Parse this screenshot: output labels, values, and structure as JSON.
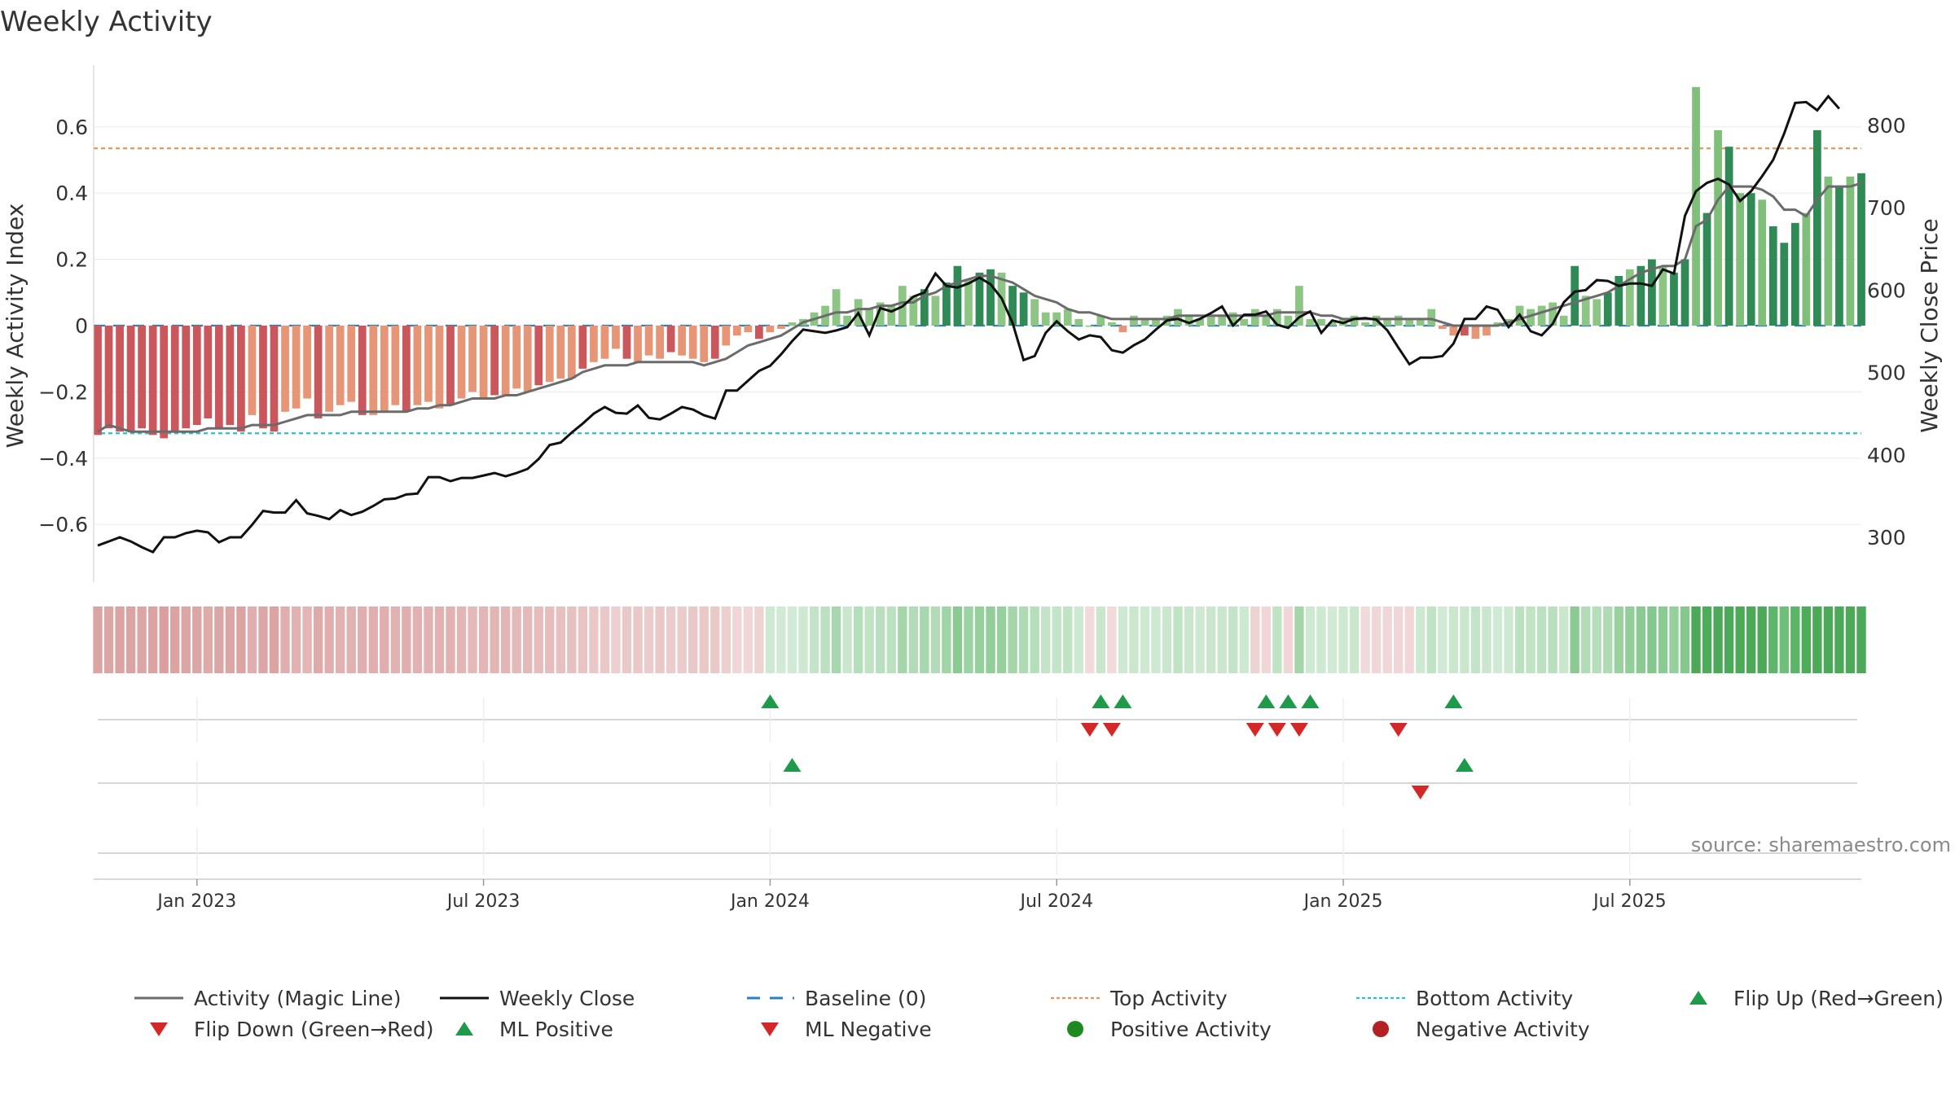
{
  "chart_data": {
    "type": "bar+line",
    "title": "Weekly Activity",
    "ylabel_left": "Weekly Activity Index",
    "ylabel_right": "Weekly Close Price",
    "source": "source: sharemaestro.com",
    "left_ticks": [
      {
        "v": 0.6,
        "label": "0.6"
      },
      {
        "v": 0.4,
        "label": "0.4"
      },
      {
        "v": 0.2,
        "label": "0.2"
      },
      {
        "v": 0,
        "label": "0"
      },
      {
        "v": -0.2,
        "label": "−0.2"
      },
      {
        "v": -0.4,
        "label": "−0.4"
      },
      {
        "v": -0.6,
        "label": "−0.6"
      }
    ],
    "right_ticks": [
      800,
      700,
      600,
      500,
      400,
      300
    ],
    "x_ticks": [
      {
        "week": 9,
        "label": "Jan 2023"
      },
      {
        "week": 35,
        "label": "Jul 2023"
      },
      {
        "week": 61,
        "label": "Jan 2024"
      },
      {
        "week": 87,
        "label": "Jul 2024"
      },
      {
        "week": 113,
        "label": "Jan 2025"
      },
      {
        "week": 139,
        "label": "Jul 2025"
      }
    ],
    "reference_lines": {
      "top_activity": 0.535,
      "bottom_activity": -0.325,
      "baseline": 0
    },
    "activity": [
      -0.33,
      -0.31,
      -0.32,
      -0.32,
      -0.31,
      -0.33,
      -0.34,
      -0.32,
      -0.31,
      -0.3,
      -0.28,
      -0.31,
      -0.3,
      -0.32,
      -0.27,
      -0.31,
      -0.32,
      -0.26,
      -0.25,
      -0.22,
      -0.28,
      -0.26,
      -0.24,
      -0.23,
      -0.27,
      -0.27,
      -0.26,
      -0.24,
      -0.26,
      -0.24,
      -0.23,
      -0.25,
      -0.24,
      -0.22,
      -0.2,
      -0.22,
      -0.21,
      -0.21,
      -0.19,
      -0.2,
      -0.18,
      -0.17,
      -0.16,
      -0.16,
      -0.13,
      -0.11,
      -0.1,
      -0.07,
      -0.1,
      -0.11,
      -0.09,
      -0.1,
      -0.08,
      -0.09,
      -0.1,
      -0.11,
      -0.1,
      -0.06,
      -0.03,
      -0.02,
      -0.04,
      -0.02,
      -0.01,
      0.01,
      0.02,
      0.04,
      0.06,
      0.11,
      0.03,
      0.08,
      0.05,
      0.07,
      0.06,
      0.12,
      0.09,
      0.11,
      0.09,
      0.13,
      0.18,
      0.14,
      0.16,
      0.17,
      0.16,
      0.12,
      0.1,
      0.08,
      0.04,
      0.04,
      0.05,
      0.02,
      0,
      0.03,
      0.01,
      -0.02,
      0.03,
      0.02,
      0.02,
      0.03,
      0.05,
      0.03,
      0.02,
      0.03,
      0.03,
      0.04,
      0.02,
      0.05,
      0.03,
      0.05,
      0.03,
      0.12,
      0.02,
      0.02,
      0.01,
      0.02,
      0.03,
      0.01,
      0.03,
      0.02,
      0.03,
      0.02,
      0.02,
      0.05,
      -0.01,
      -0.03,
      -0.03,
      -0.04,
      -0.03,
      0.01,
      0.02,
      0.06,
      0.05,
      0.06,
      0.07,
      0.03,
      0.18,
      0.09,
      0.08,
      0.1,
      0.15,
      0.17,
      0.18,
      0.2,
      0.18,
      0.16,
      0.2,
      0.72,
      0.34,
      0.59,
      0.54,
      0.4,
      0.4,
      0.38,
      0.3,
      0.25,
      0.31,
      0.34,
      0.59,
      0.45,
      0.42,
      0.45,
      0.46
    ],
    "magic_line": [
      -0.32,
      -0.3,
      -0.31,
      -0.32,
      -0.32,
      -0.32,
      -0.32,
      -0.32,
      -0.32,
      -0.32,
      -0.31,
      -0.31,
      -0.31,
      -0.31,
      -0.3,
      -0.3,
      -0.3,
      -0.29,
      -0.28,
      -0.27,
      -0.27,
      -0.27,
      -0.27,
      -0.26,
      -0.26,
      -0.26,
      -0.26,
      -0.26,
      -0.26,
      -0.25,
      -0.25,
      -0.24,
      -0.24,
      -0.23,
      -0.22,
      -0.22,
      -0.22,
      -0.21,
      -0.21,
      -0.2,
      -0.19,
      -0.18,
      -0.17,
      -0.16,
      -0.14,
      -0.13,
      -0.12,
      -0.12,
      -0.12,
      -0.11,
      -0.11,
      -0.11,
      -0.11,
      -0.11,
      -0.11,
      -0.12,
      -0.11,
      -0.1,
      -0.08,
      -0.06,
      -0.05,
      -0.04,
      -0.03,
      -0.01,
      0.01,
      0.02,
      0.03,
      0.04,
      0.04,
      0.05,
      0.05,
      0.06,
      0.06,
      0.07,
      0.07,
      0.09,
      0.1,
      0.12,
      0.13,
      0.14,
      0.15,
      0.15,
      0.14,
      0.13,
      0.11,
      0.09,
      0.08,
      0.07,
      0.05,
      0.04,
      0.04,
      0.03,
      0.02,
      0.02,
      0.02,
      0.02,
      0.02,
      0.02,
      0.03,
      0.03,
      0.03,
      0.03,
      0.03,
      0.03,
      0.03,
      0.03,
      0.03,
      0.04,
      0.04,
      0.04,
      0.04,
      0.03,
      0.03,
      0.02,
      0.02,
      0.02,
      0.02,
      0.02,
      0.02,
      0.02,
      0.02,
      0.02,
      0.01,
      0,
      0,
      0,
      0,
      0,
      0.01,
      0.02,
      0.03,
      0.04,
      0.05,
      0.06,
      0.07,
      0.08,
      0.09,
      0.1,
      0.12,
      0.14,
      0.16,
      0.17,
      0.18,
      0.18,
      0.2,
      0.3,
      0.32,
      0.38,
      0.42,
      0.42,
      0.42,
      0.41,
      0.39,
      0.35,
      0.35,
      0.33,
      0.38,
      0.42,
      0.42,
      0.42,
      0.43
    ],
    "weekly_close": [
      290,
      295,
      300,
      295,
      288,
      282,
      300,
      300,
      305,
      308,
      306,
      294,
      300,
      300,
      315,
      332,
      330,
      330,
      345,
      329,
      326,
      322,
      333,
      327,
      331,
      338,
      346,
      347,
      352,
      353,
      373,
      373,
      368,
      372,
      372,
      375,
      378,
      374,
      378,
      383,
      395,
      412,
      415,
      427,
      438,
      450,
      458,
      451,
      450,
      460,
      445,
      443,
      450,
      458,
      455,
      448,
      444,
      478,
      478,
      490,
      502,
      508,
      522,
      538,
      552,
      550,
      548,
      551,
      555,
      572,
      545,
      578,
      574,
      580,
      592,
      597,
      620,
      605,
      603,
      608,
      615,
      607,
      590,
      560,
      515,
      520,
      548,
      562,
      550,
      540,
      545,
      543,
      527,
      524,
      533,
      540,
      552,
      563,
      565,
      560,
      565,
      572,
      580,
      557,
      570,
      570,
      574,
      558,
      554,
      567,
      574,
      548,
      563,
      560,
      565,
      566,
      564,
      551,
      530,
      510,
      518,
      518,
      520,
      535,
      565,
      565,
      580,
      576,
      555,
      570,
      550,
      545,
      559,
      585,
      598,
      600,
      612,
      611,
      605,
      608,
      608,
      605,
      625,
      620,
      690,
      720,
      730,
      735,
      728,
      708,
      720,
      738,
      758,
      790,
      827,
      828,
      818,
      835,
      820
    ],
    "color_strip": [
      "r",
      "r",
      "r",
      "r",
      "r",
      "r",
      "r",
      "r",
      "r",
      "r",
      "r",
      "r",
      "r",
      "r",
      "r",
      "r",
      "r",
      "r",
      "r",
      "r",
      "r",
      "r",
      "r",
      "r",
      "r",
      "r",
      "r",
      "r",
      "r",
      "r",
      "r",
      "r",
      "r",
      "r",
      "r",
      "r",
      "r",
      "r",
      "r",
      "r",
      "r",
      "r",
      "r",
      "r",
      "r",
      "r",
      "r",
      "r",
      "r",
      "r",
      "r",
      "r",
      "r",
      "r",
      "r",
      "r",
      "r",
      "r",
      "r",
      "r",
      "r",
      "g",
      "g",
      "g",
      "g",
      "g",
      "g",
      "g",
      "g",
      "g",
      "g",
      "g",
      "g",
      "g",
      "g",
      "g",
      "g",
      "g",
      "g",
      "g",
      "g",
      "g",
      "g",
      "g",
      "g",
      "g",
      "g",
      "g",
      "g",
      "g",
      "r",
      "g",
      "r",
      "g",
      "g",
      "g",
      "g",
      "g",
      "g",
      "g",
      "g",
      "g",
      "g",
      "g",
      "g",
      "r",
      "r",
      "g",
      "r",
      "g",
      "g",
      "g",
      "g",
      "g",
      "g",
      "r",
      "r",
      "r",
      "r",
      "r",
      "g",
      "g",
      "g",
      "g",
      "g",
      "g",
      "g",
      "g",
      "g",
      "g",
      "g",
      "g",
      "g",
      "g",
      "g",
      "g",
      "g",
      "g",
      "g",
      "g",
      "g",
      "g",
      "g",
      "g",
      "g",
      "g",
      "g",
      "g",
      "g",
      "g",
      "g",
      "g",
      "g",
      "g",
      "g",
      "g",
      "g",
      "g",
      "g",
      "g",
      "g",
      "g",
      "g"
    ],
    "signals_row1": {
      "flip_up": [
        61,
        91,
        93,
        106,
        108,
        110,
        123
      ],
      "flip_down": [
        90,
        92,
        105,
        107,
        109,
        118
      ]
    },
    "signals_row2": {
      "ml_positive": [
        63,
        124
      ],
      "ml_negative": [
        120
      ]
    },
    "signals_row3": {
      "positive_activity": [],
      "negative_activity": []
    },
    "legend": [
      {
        "label": "Activity (Magic Line)",
        "kind": "line",
        "color": "#6b6b6b"
      },
      {
        "label": "Weekly Close",
        "kind": "line",
        "color": "#111111"
      },
      {
        "label": "Baseline (0)",
        "kind": "dash",
        "color": "#2f7fc0"
      },
      {
        "label": "Top Activity",
        "kind": "dot",
        "color": "#e8955a"
      },
      {
        "label": "Bottom Activity",
        "kind": "dot",
        "color": "#29c1cf"
      },
      {
        "label": "Flip Up (Red→Green)",
        "kind": "tri-up",
        "color": "#1f9a4b"
      },
      {
        "label": "Flip Down (Green→Red)",
        "kind": "tri-down",
        "color": "#d62728"
      },
      {
        "label": "ML Positive",
        "kind": "tri-up",
        "color": "#1f9a4b"
      },
      {
        "label": "ML Negative",
        "kind": "tri-down",
        "color": "#d62728"
      },
      {
        "label": "Positive Activity",
        "kind": "circle",
        "color": "#1f8a1f"
      },
      {
        "label": "Negative Activity",
        "kind": "circle",
        "color": "#b22222"
      }
    ]
  }
}
